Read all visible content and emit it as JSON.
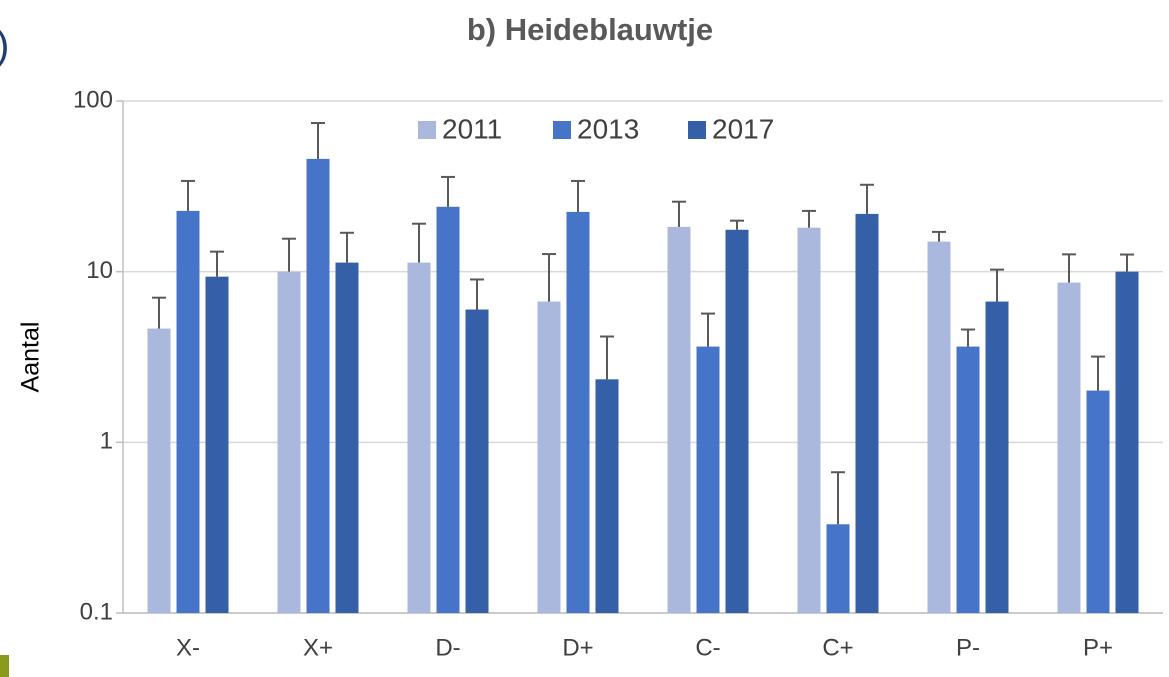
{
  "chart_data": {
    "type": "bar",
    "title": "b) Heideblauwtje",
    "annotation": ")",
    "y_label": "Aantal",
    "categories": [
      "X-",
      "X+",
      "D-",
      "D+",
      "C-",
      "C+",
      "P-",
      "P+"
    ],
    "series": [
      {
        "name": "2011",
        "color": "#a9b8dc",
        "values": [
          4.64,
          10.0,
          11.3,
          6.68,
          18.3,
          18.1,
          15.0,
          8.63
        ],
        "errors": [
          2.4,
          5.6,
          7.8,
          6.0,
          7.4,
          4.6,
          2.1,
          4.0
        ]
      },
      {
        "name": "2013",
        "color": "#4674c8",
        "values": [
          22.7,
          45.8,
          24.0,
          22.4,
          3.64,
          0.331,
          3.64,
          2.01
        ],
        "errors": [
          11.3,
          28.5,
          11.9,
          11.6,
          2.04,
          0.337,
          0.94,
          1.17
        ]
      },
      {
        "name": "2017",
        "color": "#355fa6",
        "values": [
          9.35,
          11.3,
          6.0,
          2.34,
          17.6,
          21.8,
          6.68,
          10.0
        ],
        "errors": [
          3.75,
          5.6,
          3.0,
          1.83,
          2.3,
          10.5,
          3.6,
          2.6
        ]
      }
    ],
    "log_scale": true,
    "ylim": [
      0.1,
      100
    ],
    "yticks": [
      0.1,
      1,
      10,
      100
    ],
    "grid": true,
    "legend": "top"
  }
}
